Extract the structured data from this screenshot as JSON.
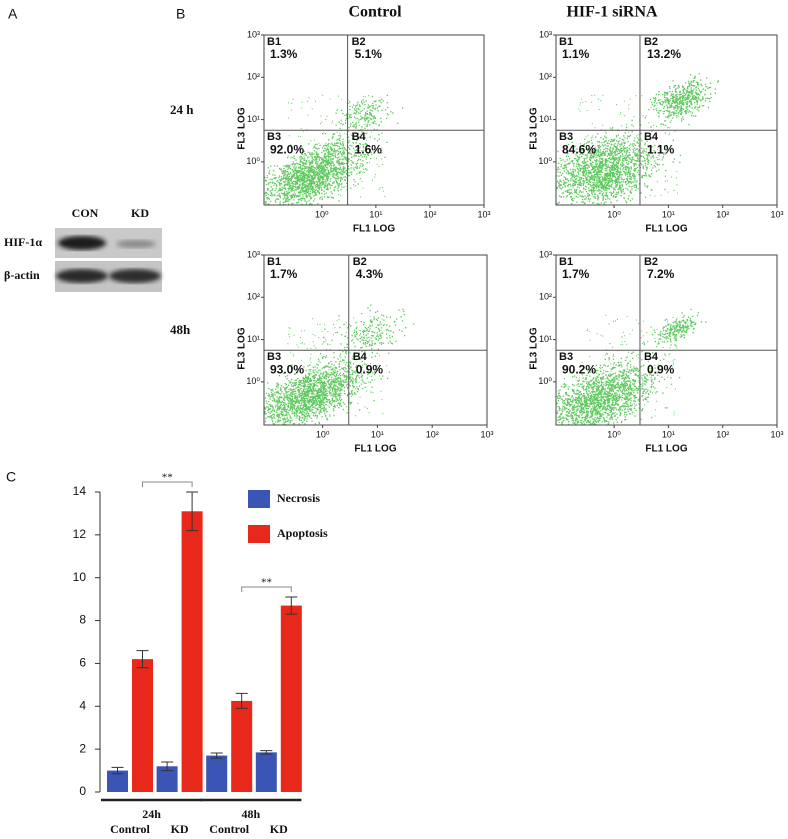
{
  "panel_labels": [
    "A",
    "B",
    "C"
  ],
  "blot": {
    "lanes": [
      "CON",
      "KD"
    ],
    "proteins": [
      "HIF-1α",
      "β-actin"
    ]
  },
  "flow": {
    "columns": [
      "Control",
      "HIF-1 siRNA"
    ],
    "rows": [
      "24 h",
      "48h"
    ],
    "x_label": "FL1 LOG",
    "y_label": "FL3 LOG",
    "xlim": [
      -1.07,
      3
    ],
    "ylim": [
      -1.02,
      3
    ],
    "xticks": [
      {
        "value": 0,
        "label": "10⁰"
      },
      {
        "value": 1,
        "label": "10¹"
      },
      {
        "value": 2,
        "label": "10²"
      },
      {
        "value": 3,
        "label": "10³"
      }
    ],
    "yticks": [
      {
        "value": 0,
        "label": "10⁰"
      },
      {
        "value": 1,
        "label": "10¹"
      },
      {
        "value": 2,
        "label": "10²"
      },
      {
        "value": 3,
        "label": "10³"
      }
    ],
    "quadrant_names": [
      "B1",
      "B2",
      "B3",
      "B4"
    ],
    "plots": [
      [
        "1.3%",
        "5.1%",
        "92.0%",
        "1.6%"
      ],
      [
        "1.1%",
        "13.2%",
        "84.6%",
        "1.1%"
      ],
      [
        "1.7%",
        "4.3%",
        "93.0%",
        "0.9%"
      ],
      [
        "1.7%",
        "7.2%",
        "90.2%",
        "0.9%"
      ]
    ]
  },
  "chart_data": {
    "type": "bar",
    "categories": [
      "Control",
      "KD",
      "Control",
      "KD"
    ],
    "groups": [
      "24h",
      "48h"
    ],
    "series": [
      {
        "name": "Necrosis",
        "color": "#3a55b4",
        "values": [
          1.0,
          1.2,
          1.7,
          1.85
        ],
        "errors": [
          0.15,
          0.2,
          0.12,
          0.08
        ]
      },
      {
        "name": "Apoptosis",
        "color": "#e8281a",
        "values": [
          6.2,
          13.1,
          4.25,
          8.7
        ],
        "errors": [
          0.4,
          0.9,
          0.35,
          0.4
        ]
      }
    ],
    "ylim": [
      0,
      14
    ],
    "yticks": [
      0,
      2,
      4,
      6,
      8,
      10,
      12,
      14
    ],
    "annotations": [
      "**",
      "**"
    ],
    "legend": "upper right"
  }
}
